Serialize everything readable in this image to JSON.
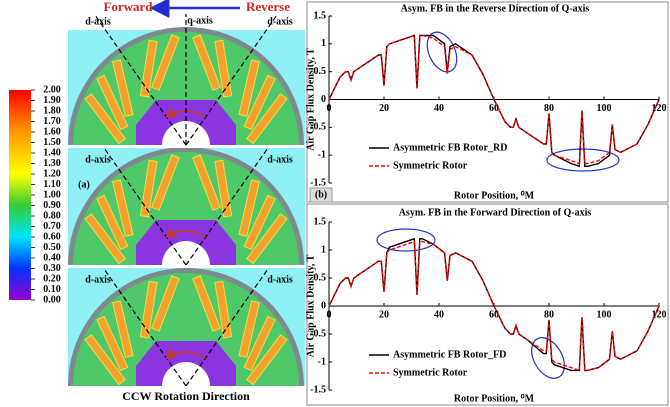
{
  "diagram": {
    "forward": "Forward",
    "reverse": "Reverse",
    "q_axis": "q-axis",
    "d_axis": "d-axis",
    "panel_label": "(a)",
    "caption": "CCW Rotation Direction"
  },
  "colorbar": {
    "lim": [
      0,
      2
    ],
    "ticks": [
      {
        "value": 2,
        "label": "2.00"
      },
      {
        "value": 1.9,
        "label": "1.90"
      },
      {
        "value": 1.8,
        "label": "1.80"
      },
      {
        "value": 1.7,
        "label": "1.70"
      },
      {
        "value": 1.6,
        "label": "1.60"
      },
      {
        "value": 1.5,
        "label": "1.50"
      },
      {
        "value": 1.4,
        "label": "1.40"
      },
      {
        "value": 1.3,
        "label": "1.30"
      },
      {
        "value": 1.2,
        "label": "1.20"
      },
      {
        "value": 1.1,
        "label": "1.10"
      },
      {
        "value": 1,
        "label": "1.00"
      },
      {
        "value": 0.9,
        "label": "0.90"
      },
      {
        "value": 0.8,
        "label": "0.80"
      },
      {
        "value": 0.7,
        "label": "0.70"
      },
      {
        "value": 0.6,
        "label": "0.60"
      },
      {
        "value": 0.5,
        "label": "0.50"
      },
      {
        "value": 0.4,
        "label": "0.40"
      },
      {
        "value": 0.3,
        "label": "0.30"
      },
      {
        "value": 0.2,
        "label": "0.20"
      },
      {
        "value": 0.1,
        "label": "0.10"
      },
      {
        "value": 0,
        "label": "0.00"
      }
    ]
  },
  "chart_data": [
    {
      "type": "line",
      "title": "Asym. FB in the Reverse Direction of Q-axis",
      "panel_label": "(b)",
      "x_label": "Rotor Position, ⁰M",
      "y_label": "Air Gap Flux Density, T",
      "xlim": [
        0,
        120
      ],
      "xticks": [
        0,
        20,
        40,
        60,
        80,
        100,
        120
      ],
      "ylim": [
        -1.5,
        1.5
      ],
      "yticks": [
        -1.5,
        -1,
        -0.5,
        0,
        0.5,
        1,
        1.5
      ],
      "legend": "lower left",
      "x": [
        0,
        4,
        6,
        7,
        8,
        9,
        12,
        18,
        19,
        20,
        21,
        22,
        28,
        31,
        32,
        33,
        34,
        38,
        42,
        43,
        44,
        46,
        52,
        56,
        60,
        64,
        66,
        67,
        68,
        69,
        72,
        78,
        79,
        80,
        81,
        82,
        88,
        91,
        92,
        93,
        94,
        98,
        102,
        103,
        104,
        106,
        112,
        116,
        120
      ],
      "series": [
        {
          "name": "Asymmetric FB Rotor_RD",
          "color": "#000000",
          "dashed": false,
          "values": [
            0,
            0.4,
            0.5,
            0.5,
            0.35,
            0.5,
            0.6,
            0.8,
            0.8,
            0.25,
            0.95,
            1.0,
            1.1,
            1.15,
            0.2,
            1.15,
            1.15,
            1.15,
            1.0,
            0.5,
            0.95,
            1.0,
            0.8,
            0.45,
            0,
            -0.4,
            -0.5,
            -0.5,
            -0.35,
            -0.5,
            -0.6,
            -0.8,
            -0.8,
            -0.25,
            -0.95,
            -1.0,
            -1.15,
            -1.2,
            -0.2,
            -1.2,
            -1.2,
            -1.15,
            -1.0,
            -0.45,
            -0.9,
            -0.95,
            -0.8,
            -0.45,
            0
          ]
        },
        {
          "name": "Symmetric Rotor",
          "color": "#ff0000",
          "dashed": true,
          "values": [
            0,
            0.4,
            0.5,
            0.5,
            0.35,
            0.5,
            0.6,
            0.8,
            0.8,
            0.25,
            0.95,
            1.0,
            1.1,
            1.15,
            0.2,
            1.15,
            1.15,
            1.1,
            0.95,
            0.45,
            0.9,
            0.95,
            0.8,
            0.45,
            0,
            -0.4,
            -0.5,
            -0.5,
            -0.35,
            -0.5,
            -0.6,
            -0.8,
            -0.8,
            -0.25,
            -0.95,
            -1.0,
            -1.1,
            -1.15,
            -0.2,
            -1.15,
            -1.15,
            -1.1,
            -0.95,
            -0.45,
            -0.9,
            -0.95,
            -0.8,
            -0.45,
            0
          ]
        }
      ]
    },
    {
      "type": "line",
      "title": "Asym. FB in the Forward Direction of Q-axis",
      "x_label": "Rotor Position, ⁰M",
      "y_label": "Air Gap Flux Density, T",
      "xlim": [
        0,
        120
      ],
      "xticks": [
        0,
        20,
        40,
        60,
        80,
        100,
        120
      ],
      "ylim": [
        -1.5,
        1.5
      ],
      "yticks": [
        -1.5,
        -1,
        -0.5,
        0,
        0.5,
        1,
        1.5
      ],
      "legend": "lower left",
      "x": [
        0,
        4,
        6,
        7,
        8,
        9,
        12,
        18,
        19,
        20,
        21,
        22,
        28,
        31,
        32,
        33,
        34,
        38,
        42,
        43,
        44,
        46,
        52,
        56,
        60,
        64,
        66,
        67,
        68,
        69,
        72,
        78,
        79,
        80,
        81,
        82,
        88,
        91,
        92,
        93,
        94,
        98,
        102,
        103,
        104,
        106,
        112,
        116,
        120
      ],
      "series": [
        {
          "name": "Asymmetric FB Rotor_FD",
          "color": "#000000",
          "dashed": false,
          "values": [
            0,
            0.4,
            0.5,
            0.5,
            0.35,
            0.5,
            0.6,
            0.8,
            0.8,
            0.25,
            0.95,
            1.05,
            1.15,
            1.2,
            0.2,
            1.2,
            1.2,
            1.1,
            0.95,
            0.45,
            0.9,
            0.95,
            0.8,
            0.45,
            0,
            -0.4,
            -0.5,
            -0.5,
            -0.35,
            -0.5,
            -0.6,
            -0.85,
            -0.85,
            -0.25,
            -1.0,
            -1.05,
            -1.15,
            -1.15,
            -0.2,
            -1.15,
            -1.15,
            -1.1,
            -0.95,
            -0.45,
            -0.9,
            -0.95,
            -0.8,
            -0.45,
            0
          ]
        },
        {
          "name": "Symmetric Rotor",
          "color": "#ff0000",
          "dashed": true,
          "values": [
            0,
            0.4,
            0.5,
            0.5,
            0.35,
            0.5,
            0.6,
            0.8,
            0.8,
            0.25,
            0.95,
            1.0,
            1.1,
            1.15,
            0.2,
            1.15,
            1.15,
            1.1,
            0.95,
            0.45,
            0.9,
            0.95,
            0.8,
            0.45,
            0,
            -0.4,
            -0.5,
            -0.5,
            -0.35,
            -0.5,
            -0.6,
            -0.8,
            -0.8,
            -0.25,
            -0.95,
            -1.0,
            -1.1,
            -1.15,
            -0.2,
            -1.15,
            -1.15,
            -1.1,
            -0.95,
            -0.45,
            -0.9,
            -0.95,
            -0.8,
            -0.45,
            0
          ]
        }
      ]
    }
  ]
}
